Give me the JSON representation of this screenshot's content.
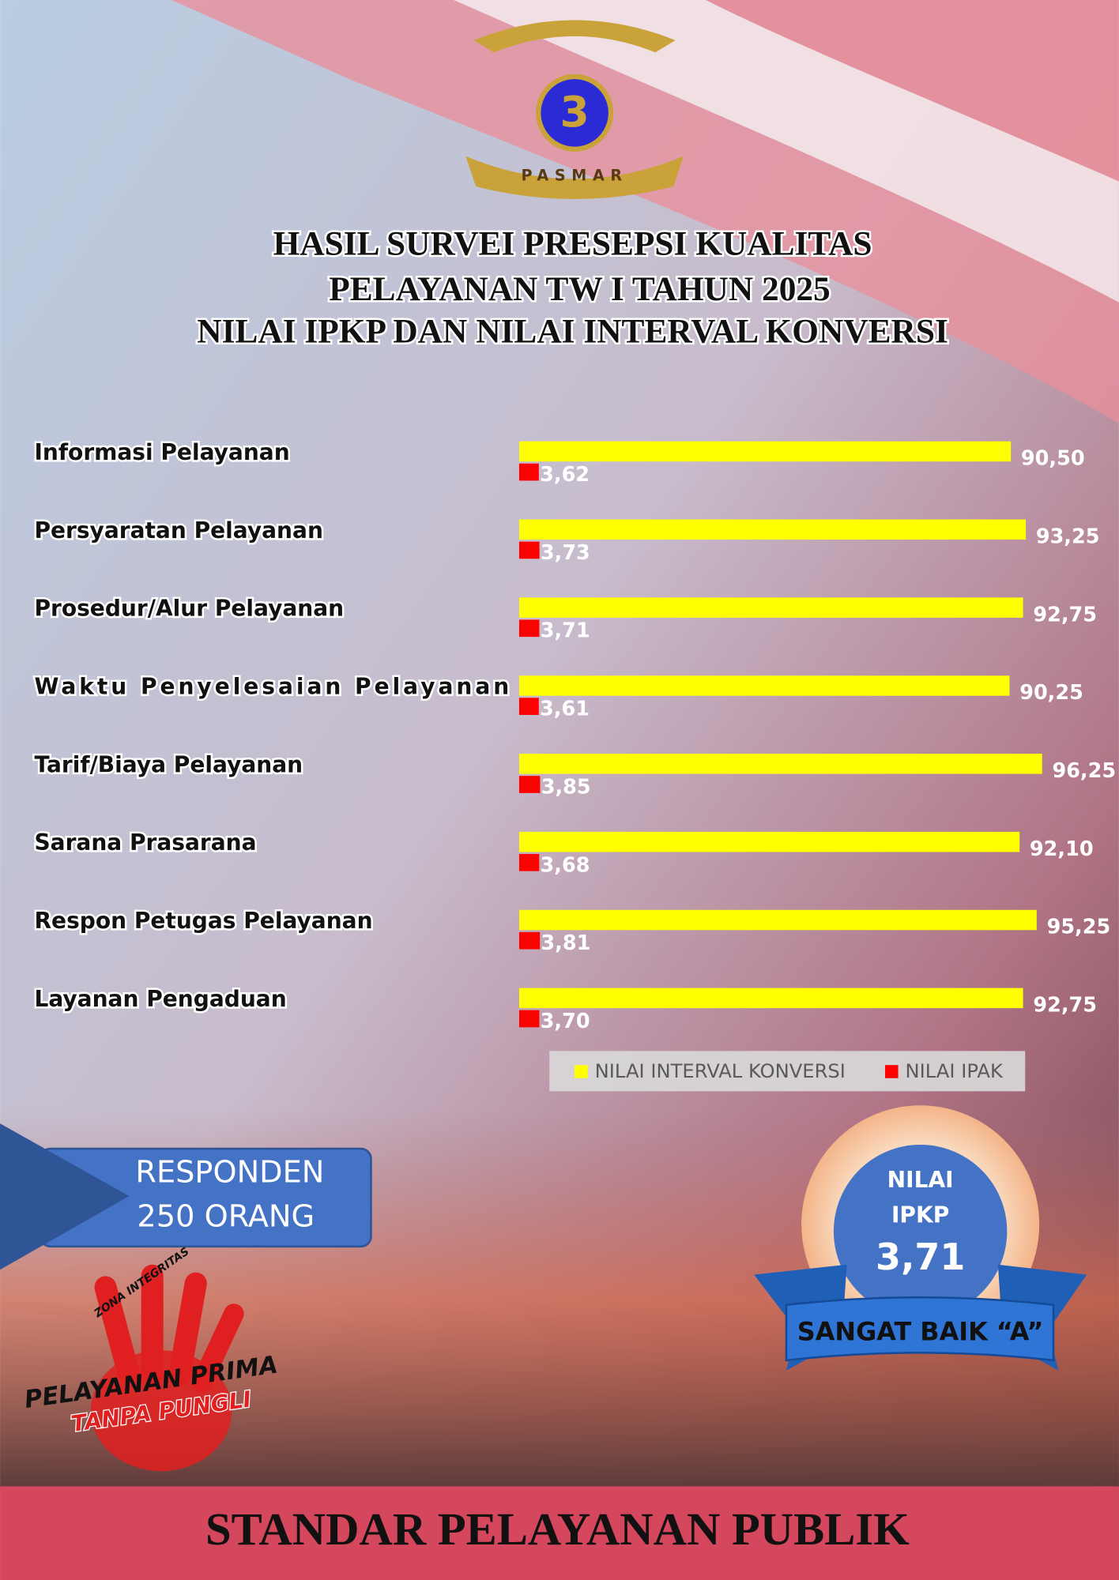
{
  "logo": {
    "number": "3",
    "motto": "PASMAR"
  },
  "chart_data": {
    "type": "bar",
    "orientation": "horizontal",
    "title": [
      "HASIL SURVEI PRESEPSI KUALITAS",
      "PELAYANAN TW I TAHUN 2025",
      "NILAI IPKP DAN NILAI INTERVAL KONVERSI"
    ],
    "categories": [
      "Informasi Pelayanan",
      "Persyaratan Pelayanan",
      "Prosedur/Alur Pelayanan",
      "Waktu Penyelesaian Pelayanan",
      "Tarif/Biaya Pelayanan",
      "Sarana Prasarana",
      "Respon Petugas Pelayanan",
      "Layanan Pengaduan"
    ],
    "xlim": [
      0,
      100
    ],
    "legend": "bottom-right",
    "series": [
      {
        "name": "NILAI INTERVAL KONVERSI",
        "color": "#ffff00",
        "values": [
          90.5,
          93.25,
          92.75,
          90.25,
          96.25,
          92.1,
          95.25,
          92.75
        ],
        "value_labels": [
          "90,50",
          "93,25",
          "92,75",
          "90,25",
          "96,25",
          "92,10",
          "95,25",
          "92,75"
        ]
      },
      {
        "name": "NILAI IPAK",
        "color": "#ff0000",
        "values": [
          3.62,
          3.73,
          3.71,
          3.61,
          3.85,
          3.68,
          3.81,
          3.7
        ],
        "value_labels": [
          "3,62",
          "3,73",
          "3,71",
          "3,61",
          "3,85",
          "3,68",
          "3,81",
          "3,70"
        ]
      }
    ]
  },
  "respondents": {
    "label": "RESPONDEN",
    "count": "250 ORANG"
  },
  "badge": {
    "line1": "NILAI",
    "line2": "IPKP",
    "score": "3,71",
    "grade": "SANGAT BAIK “A”"
  },
  "stamp": {
    "zone": "ZONA INTEGRITAS",
    "line1": "PELAYANAN PRIMA",
    "line2": "TANPA PUNGLI"
  },
  "footer": "STANDAR PELAYANAN PUBLIK"
}
